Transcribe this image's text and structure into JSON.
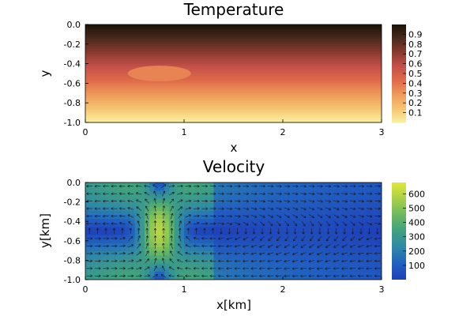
{
  "chart_data": [
    {
      "type": "heatmap",
      "title": "Temperature",
      "xlabel": "x",
      "ylabel": "y",
      "xlim": [
        0,
        3
      ],
      "ylim": [
        -1,
        0
      ],
      "x_ticks": [
        "0",
        "1",
        "2",
        "3"
      ],
      "y_ticks": [
        "0.0",
        "-0.2",
        "-0.4",
        "-0.6",
        "-0.8",
        "-1.0"
      ],
      "colorbar": {
        "range": [
          0,
          1
        ],
        "ticks": [
          "0.1",
          "0.2",
          "0.3",
          "0.4",
          "0.5",
          "0.6",
          "0.7",
          "0.8",
          "0.9"
        ],
        "colormap": [
          "#1a1208",
          "#4a2a1e",
          "#8a3a2e",
          "#c4504a",
          "#e06a4a",
          "#ee9a5a",
          "#f5c470",
          "#faf0a0"
        ]
      },
      "field": "temperature increases linearly with depth (T = -y)",
      "anomaly": {
        "center_x": 0.75,
        "center_y": -0.5,
        "semi_axis_x": 0.32,
        "semi_axis_y": 0.08,
        "value": 0.65
      }
    },
    {
      "type": "heatmap",
      "title": "Velocity",
      "xlabel": "x[km]",
      "ylabel": "y[km]",
      "xlim": [
        0,
        3
      ],
      "ylim": [
        -1,
        0
      ],
      "x_ticks": [
        "0",
        "1",
        "2",
        "3"
      ],
      "y_ticks": [
        "0.0",
        "-0.2",
        "-0.4",
        "-0.6",
        "-0.8",
        "-1.0"
      ],
      "colorbar": {
        "range": [
          0,
          680
        ],
        "ticks": [
          "100",
          "200",
          "300",
          "400",
          "500",
          "600"
        ],
        "colormap": [
          "#1f3fb8",
          "#2160c0",
          "#2e88a8",
          "#40a080",
          "#6cb860",
          "#a8d048",
          "#e0e838"
        ]
      },
      "overlay": "velocity arrows (quiver) showing a convection cell with upwelling near x = 0.75"
    }
  ]
}
